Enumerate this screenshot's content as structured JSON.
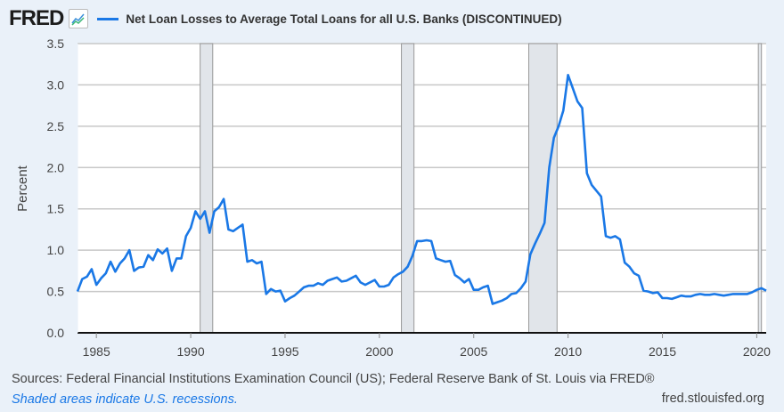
{
  "header": {
    "logo": "FRED",
    "logo_icon": "line-chart-icon"
  },
  "chart_data": {
    "type": "line",
    "title": "Net Loan Losses to Average Total Loans for all U.S. Banks (DISCONTINUED)",
    "ylabel": "Percent",
    "xlabel": "",
    "ylim": [
      0,
      3.5
    ],
    "xlim": [
      "1984-01",
      "2020-07"
    ],
    "yticks": [
      "0.0",
      "0.5",
      "1.0",
      "1.5",
      "2.0",
      "2.5",
      "3.0",
      "3.5"
    ],
    "xticks": [
      "1985",
      "1990",
      "1995",
      "2000",
      "2005",
      "2010",
      "2015",
      "2020"
    ],
    "grid": true,
    "legend": "top",
    "color": "#1a78e6",
    "recessions": [
      [
        "1990-07",
        "1991-03"
      ],
      [
        "2001-03",
        "2001-11"
      ],
      [
        "2007-12",
        "2009-06"
      ],
      [
        "2020-02",
        "2020-04"
      ]
    ],
    "series": [
      {
        "name": "Net Loan Losses to Average Total Loans for all U.S. Banks (DISCONTINUED)",
        "x": [
          "1984-01",
          "1984-04",
          "1984-07",
          "1984-10",
          "1985-01",
          "1985-04",
          "1985-07",
          "1985-10",
          "1986-01",
          "1986-04",
          "1986-07",
          "1986-10",
          "1987-01",
          "1987-04",
          "1987-07",
          "1987-10",
          "1988-01",
          "1988-04",
          "1988-07",
          "1988-10",
          "1989-01",
          "1989-04",
          "1989-07",
          "1989-10",
          "1990-01",
          "1990-04",
          "1990-07",
          "1990-10",
          "1991-01",
          "1991-04",
          "1991-07",
          "1991-10",
          "1992-01",
          "1992-04",
          "1992-07",
          "1992-10",
          "1993-01",
          "1993-04",
          "1993-07",
          "1993-10",
          "1994-01",
          "1994-04",
          "1994-07",
          "1994-10",
          "1995-01",
          "1995-04",
          "1995-07",
          "1995-10",
          "1996-01",
          "1996-04",
          "1996-07",
          "1996-10",
          "1997-01",
          "1997-04",
          "1997-07",
          "1997-10",
          "1998-01",
          "1998-04",
          "1998-07",
          "1998-10",
          "1999-01",
          "1999-04",
          "1999-07",
          "1999-10",
          "2000-01",
          "2000-04",
          "2000-07",
          "2000-10",
          "2001-01",
          "2001-04",
          "2001-07",
          "2001-10",
          "2002-01",
          "2002-04",
          "2002-07",
          "2002-10",
          "2003-01",
          "2003-04",
          "2003-07",
          "2003-10",
          "2004-01",
          "2004-04",
          "2004-07",
          "2004-10",
          "2005-01",
          "2005-04",
          "2005-07",
          "2005-10",
          "2006-01",
          "2006-04",
          "2006-07",
          "2006-10",
          "2007-01",
          "2007-04",
          "2007-07",
          "2007-10",
          "2008-01",
          "2008-04",
          "2008-07",
          "2008-10",
          "2009-01",
          "2009-04",
          "2009-07",
          "2009-10",
          "2010-01",
          "2010-04",
          "2010-07",
          "2010-10",
          "2011-01",
          "2011-04",
          "2011-07",
          "2011-10",
          "2012-01",
          "2012-04",
          "2012-07",
          "2012-10",
          "2013-01",
          "2013-04",
          "2013-07",
          "2013-10",
          "2014-01",
          "2014-04",
          "2014-07",
          "2014-10",
          "2015-01",
          "2015-04",
          "2015-07",
          "2015-10",
          "2016-01",
          "2016-04",
          "2016-07",
          "2016-10",
          "2017-01",
          "2017-04",
          "2017-07",
          "2017-10",
          "2018-01",
          "2018-04",
          "2018-07",
          "2018-10",
          "2019-01",
          "2019-04",
          "2019-07",
          "2019-10",
          "2020-01",
          "2020-04",
          "2020-07"
        ],
        "values": [
          0.5,
          0.65,
          0.68,
          0.77,
          0.58,
          0.66,
          0.72,
          0.86,
          0.74,
          0.84,
          0.9,
          1.0,
          0.75,
          0.79,
          0.8,
          0.94,
          0.88,
          1.01,
          0.96,
          1.02,
          0.75,
          0.9,
          0.9,
          1.17,
          1.27,
          1.47,
          1.38,
          1.47,
          1.21,
          1.47,
          1.52,
          1.62,
          1.25,
          1.23,
          1.27,
          1.31,
          0.86,
          0.88,
          0.84,
          0.86,
          0.47,
          0.53,
          0.5,
          0.51,
          0.38,
          0.42,
          0.45,
          0.5,
          0.55,
          0.57,
          0.57,
          0.6,
          0.58,
          0.63,
          0.65,
          0.67,
          0.62,
          0.63,
          0.66,
          0.69,
          0.61,
          0.58,
          0.61,
          0.64,
          0.56,
          0.56,
          0.58,
          0.67,
          0.71,
          0.74,
          0.8,
          0.93,
          1.11,
          1.11,
          1.12,
          1.11,
          0.9,
          0.88,
          0.86,
          0.87,
          0.7,
          0.66,
          0.61,
          0.65,
          0.52,
          0.52,
          0.55,
          0.57,
          0.35,
          0.37,
          0.39,
          0.42,
          0.47,
          0.48,
          0.54,
          0.62,
          0.95,
          1.08,
          1.2,
          1.33,
          2.0,
          2.36,
          2.5,
          2.69,
          3.12,
          2.96,
          2.8,
          2.72,
          1.93,
          1.79,
          1.72,
          1.65,
          1.17,
          1.15,
          1.17,
          1.13,
          0.85,
          0.8,
          0.72,
          0.69,
          0.51,
          0.5,
          0.48,
          0.49,
          0.42,
          0.42,
          0.41,
          0.43,
          0.45,
          0.44,
          0.44,
          0.46,
          0.47,
          0.46,
          0.46,
          0.47,
          0.46,
          0.45,
          0.46,
          0.47,
          0.47,
          0.47,
          0.47,
          0.49,
          0.52,
          0.54,
          0.51
        ]
      }
    ]
  },
  "footer": {
    "sources": "Sources: Federal Financial Institutions Examination Council (US); Federal Reserve Bank of St. Louis via FRED®",
    "recession_note": "Shaded areas indicate U.S. recessions.",
    "url": "fred.stlouisfed.org"
  }
}
